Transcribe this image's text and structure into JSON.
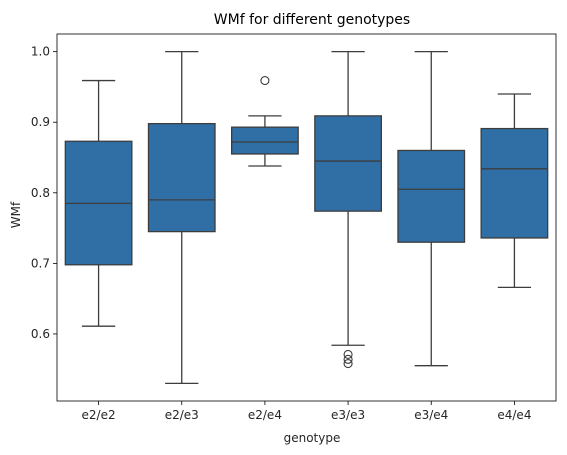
{
  "chart_data": {
    "type": "box",
    "title": "WMf for different genotypes",
    "xlabel": "genotype",
    "ylabel": "WMf",
    "ylim": [
      0.505,
      1.025
    ],
    "yticks": [
      0.6,
      0.7,
      0.8,
      0.9,
      1.0
    ],
    "ytick_labels": [
      "0.6",
      "0.7",
      "0.8",
      "0.9",
      "1.0"
    ],
    "box_color": "#2f6fa6",
    "line_color": "#3d3d3d",
    "categories": [
      "e2/e2",
      "e2/e3",
      "e2/e4",
      "e3/e3",
      "e3/e4",
      "e4/e4"
    ],
    "boxes": [
      {
        "whisker_low": 0.611,
        "q1": 0.698,
        "median": 0.785,
        "q3": 0.873,
        "whisker_high": 0.959,
        "outliers": []
      },
      {
        "whisker_low": 0.53,
        "q1": 0.745,
        "median": 0.79,
        "q3": 0.898,
        "whisker_high": 1.0,
        "outliers": []
      },
      {
        "whisker_low": 0.838,
        "q1": 0.855,
        "median": 0.872,
        "q3": 0.893,
        "whisker_high": 0.909,
        "outliers": [
          0.959
        ]
      },
      {
        "whisker_low": 0.584,
        "q1": 0.774,
        "median": 0.845,
        "q3": 0.909,
        "whisker_high": 1.0,
        "outliers": [
          0.571,
          0.564,
          0.558
        ]
      },
      {
        "whisker_low": 0.555,
        "q1": 0.73,
        "median": 0.805,
        "q3": 0.86,
        "whisker_high": 1.0,
        "outliers": []
      },
      {
        "whisker_low": 0.666,
        "q1": 0.736,
        "median": 0.834,
        "q3": 0.891,
        "whisker_high": 0.94,
        "outliers": []
      }
    ]
  }
}
